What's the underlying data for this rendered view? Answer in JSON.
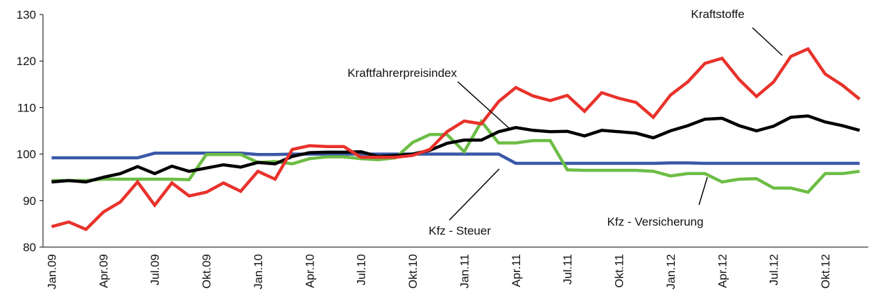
{
  "chart_data": {
    "type": "line",
    "categories": [
      "Jan.09",
      null,
      null,
      "Apr.09",
      null,
      null,
      "Jul.09",
      null,
      null,
      "Okt.09",
      null,
      null,
      "Jan.10",
      null,
      null,
      "Apr.10",
      null,
      null,
      "Jul.10",
      null,
      null,
      "Okt.10",
      null,
      null,
      "Jan.11",
      null,
      null,
      "Apr.11",
      null,
      null,
      "Jul.11",
      null,
      null,
      "Okt.11",
      null,
      null,
      "Jan.12",
      null,
      null,
      "Apr.12",
      null,
      null,
      "Jul.12",
      null,
      null,
      "Okt.12",
      null,
      null
    ],
    "ylim": [
      80,
      130
    ],
    "yticks": [
      80,
      90,
      100,
      110,
      120,
      130
    ],
    "grid": false,
    "series": [
      {
        "name": "Kfz - Steuer",
        "color": "#3a58a8",
        "values": [
          99.2,
          99.2,
          99.2,
          99.2,
          99.2,
          99.2,
          100.2,
          100.2,
          100.2,
          100.2,
          100.2,
          100.2,
          99.9,
          99.9,
          100,
          100,
          100,
          100,
          100,
          100,
          100,
          100,
          100,
          100,
          100,
          100,
          100,
          98,
          98,
          98,
          98,
          98,
          98,
          98,
          98,
          98,
          98.1,
          98.1,
          98,
          98,
          98,
          98,
          98,
          98,
          98,
          98,
          98,
          98
        ]
      },
      {
        "name": "Kfz - Versicherung",
        "color": "#6cbd45",
        "values": [
          94.3,
          94.3,
          94.3,
          94.6,
          94.6,
          94.6,
          94.6,
          94.6,
          94.5,
          99.9,
          99.9,
          99.9,
          98.2,
          98.4,
          97.9,
          99,
          99.4,
          99.4,
          99,
          98.8,
          99.2,
          102.5,
          104.2,
          104.2,
          100.5,
          107,
          102.4,
          102.4,
          102.9,
          102.9,
          96.6,
          96.5,
          96.5,
          96.5,
          96.5,
          96.3,
          95.3,
          95.8,
          95.8,
          94,
          94.6,
          94.7,
          92.7,
          92.7,
          91.8,
          95.8,
          95.8,
          96.3
        ]
      },
      {
        "name": "Kraftfahrerpreisindex",
        "color": "#000000",
        "values": [
          94,
          94.3,
          94,
          95,
          95.8,
          97.3,
          95.8,
          97.4,
          96.3,
          97,
          97.7,
          97.2,
          98.2,
          97.9,
          99.5,
          100.3,
          100.4,
          100.4,
          100.5,
          99.5,
          99.7,
          100,
          100.8,
          102.3,
          103,
          103,
          104.8,
          105.7,
          105.1,
          104.8,
          104.9,
          103.9,
          105.1,
          104.8,
          104.5,
          103.5,
          105,
          106.1,
          107.5,
          107.7,
          106.1,
          105,
          106,
          107.9,
          108.2,
          106.9,
          106.1,
          105.1
        ]
      },
      {
        "name": "Kraftstoffe",
        "color": "#e8322b",
        "values": [
          84.4,
          85.4,
          83.8,
          87.5,
          89.7,
          94,
          89,
          93.8,
          91,
          91.8,
          93.8,
          92,
          96.3,
          94.6,
          101,
          101.8,
          101.6,
          101.6,
          99.3,
          99.3,
          99.3,
          99.7,
          101,
          104.8,
          107.1,
          106.5,
          111.3,
          114.3,
          112.5,
          111.5,
          112.6,
          109.2,
          113.2,
          112,
          111.1,
          107.9,
          112.7,
          115.5,
          119.5,
          120.6,
          116,
          112.4,
          115.5,
          121,
          122.6,
          117.2,
          114.8,
          111.8
        ]
      }
    ]
  }
}
